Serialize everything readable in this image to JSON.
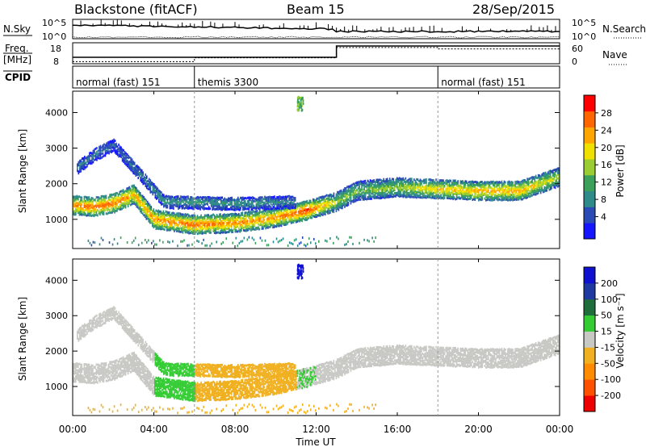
{
  "header": {
    "station": "Blackstone (fitACF)",
    "beam": "Beam 15",
    "date": "28/Sep/2015"
  },
  "panels": {
    "nsky": {
      "label": "N.Sky",
      "tick_top": "10^5",
      "tick_bottom": "10^0",
      "right_label": "N.Search",
      "right_tick_top": "10^5",
      "right_tick_bottom": "10^0"
    },
    "freq": {
      "label_line1": "Freq.",
      "label_line2": "[MHz]",
      "tick_top": "18",
      "tick_bottom": "8",
      "right_label": "Nave",
      "right_tick_top": "60",
      "right_tick_bottom": "0"
    },
    "cpid": {
      "label": "CPID",
      "segments": [
        "normal (fast) 151",
        "themis 3300",
        "normal (fast) 151"
      ]
    }
  },
  "axes": {
    "ylabel_power": "Slant Range [km]",
    "ylabel_velocity": "Slant Range [km]",
    "xlabel": "Time UT",
    "x_ticks": [
      "00:00",
      "04:00",
      "08:00",
      "12:00",
      "16:00",
      "20:00",
      "00:00"
    ],
    "y_ticks": [
      "1000",
      "2000",
      "3000",
      "4000"
    ]
  },
  "colorbars": {
    "power": {
      "label": "Power [dB]",
      "ticks": [
        "4",
        "8",
        "12",
        "16",
        "20",
        "24",
        "28"
      ],
      "colors": [
        "#1515ff",
        "#2a4bb5",
        "#2f8a8a",
        "#3aa05a",
        "#9acd32",
        "#f0e000",
        "#ffa500",
        "#ff6600",
        "#ff0000"
      ]
    },
    "velocity": {
      "label": "Velocity [m s⁻¹]",
      "ticks": [
        "200",
        "100",
        "50",
        "15",
        "-15",
        "-50",
        "-100",
        "-200"
      ],
      "colors": [
        "#1010d0",
        "#1e3aa0",
        "#1e6e3c",
        "#33cc33",
        "#c8c8c4",
        "#f0b020",
        "#ff8c00",
        "#ff5000",
        "#ee0000"
      ]
    }
  },
  "chart_data": {
    "type": "heatmap",
    "title": "Blackstone (fitACF)",
    "subtitle": "Beam 15  28/Sep/2015",
    "xlabel": "Time UT",
    "ylabel": "Slant Range [km]",
    "x_range_hours": [
      0,
      24
    ],
    "ylim_km": [
      180,
      4600
    ],
    "cpid_segments": [
      {
        "label": "normal (fast) 151",
        "start_hour": 0,
        "end_hour": 6
      },
      {
        "label": "themis 3300",
        "start_hour": 6,
        "end_hour": 18
      },
      {
        "label": "normal (fast) 151",
        "start_hour": 18,
        "end_hour": 24
      }
    ],
    "frequency_mhz": [
      {
        "start_hour": 0,
        "end_hour": 13,
        "value": 10.5
      },
      {
        "start_hour": 13,
        "end_hour": 24,
        "value": 17.5
      }
    ],
    "nave": [
      {
        "start_hour": 0,
        "end_hour": 6,
        "value": 7
      },
      {
        "start_hour": 6,
        "end_hour": 13,
        "value": 20
      },
      {
        "start_hour": 13,
        "end_hour": 18,
        "value": 55
      },
      {
        "start_hour": 18,
        "end_hour": 24,
        "value": 50
      }
    ],
    "power_scatter_bands": [
      {
        "band": "main",
        "points": [
          {
            "hour": 0.0,
            "range_km": 1400,
            "power_db": 24
          },
          {
            "hour": 1.0,
            "range_km": 1350,
            "power_db": 26
          },
          {
            "hour": 2.0,
            "range_km": 1450,
            "power_db": 26
          },
          {
            "hour": 3.0,
            "range_km": 1700,
            "power_db": 22
          },
          {
            "hour": 4.0,
            "range_km": 1000,
            "power_db": 24
          },
          {
            "hour": 6.0,
            "range_km": 850,
            "power_db": 26
          },
          {
            "hour": 8.0,
            "range_km": 900,
            "power_db": 24
          },
          {
            "hour": 10.0,
            "range_km": 1050,
            "power_db": 24
          },
          {
            "hour": 11.5,
            "range_km": 1250,
            "power_db": 28
          },
          {
            "hour": 13.0,
            "range_km": 1500,
            "power_db": 16
          },
          {
            "hour": 14.0,
            "range_km": 1800,
            "power_db": 14
          },
          {
            "hour": 16.0,
            "range_km": 1900,
            "power_db": 16
          },
          {
            "hour": 18.0,
            "range_km": 1850,
            "power_db": 20
          },
          {
            "hour": 20.0,
            "range_km": 1800,
            "power_db": 22
          },
          {
            "hour": 22.0,
            "range_km": 1800,
            "power_db": 22
          },
          {
            "hour": 24.0,
            "range_km": 2200,
            "power_db": 16
          }
        ]
      },
      {
        "band": "upper",
        "points": [
          {
            "hour": 0.2,
            "range_km": 2450,
            "power_db": 8
          },
          {
            "hour": 1.0,
            "range_km": 2800,
            "power_db": 8
          },
          {
            "hour": 2.0,
            "range_km": 3100,
            "power_db": 6
          },
          {
            "hour": 4.5,
            "range_km": 1500,
            "power_db": 10
          },
          {
            "hour": 8.0,
            "range_km": 1450,
            "power_db": 10
          },
          {
            "hour": 11.0,
            "range_km": 1500,
            "power_db": 8
          }
        ]
      },
      {
        "band": "burst",
        "points": [
          {
            "hour": 11.2,
            "range_km": 4250,
            "power_db": 12
          }
        ]
      }
    ],
    "velocity_summary": [
      {
        "region": "00:00-04:00 main band",
        "velocity_ms": -10
      },
      {
        "region": "04:00-06:00 band",
        "velocity_ms": 20
      },
      {
        "region": "06:00-11:00 lower band",
        "velocity_ms": -35
      },
      {
        "region": "11:00-12:00 burst",
        "velocity_ms": 200
      },
      {
        "region": "13:00-24:00 band",
        "velocity_ms": -5
      }
    ],
    "power_scale_db": [
      0,
      30
    ],
    "velocity_scale_ms": [
      -250,
      250
    ]
  }
}
